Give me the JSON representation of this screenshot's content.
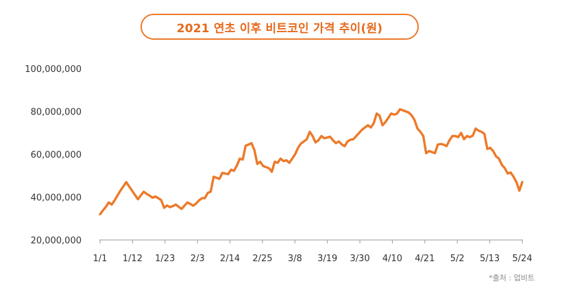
{
  "chart_data": {
    "type": "line",
    "title": "2021 연초 이후 비트코인 가격 추이(원)",
    "source": "*출처 : 업비트",
    "ylim": [
      20000000,
      100000000
    ],
    "y_ticks": [
      {
        "value": 100000000,
        "label": "100,000,000"
      },
      {
        "value": 80000000,
        "label": "80,000,000"
      },
      {
        "value": 60000000,
        "label": "60,000,000"
      },
      {
        "value": 40000000,
        "label": "40,000,000"
      },
      {
        "value": 20000000,
        "label": "20,000,000"
      }
    ],
    "x_ticks": [
      "1/1",
      "1/12",
      "1/23",
      "2/3",
      "2/14",
      "2/25",
      "3/8",
      "3/19",
      "3/30",
      "4/10",
      "4/21",
      "5/2",
      "5/13",
      "5/24"
    ],
    "grid": false,
    "line_color": "#ec7a2a",
    "series": [
      {
        "values": [
          32000000,
          33800000,
          35500000,
          37500000,
          36500000,
          38500000,
          40800000,
          43000000,
          45000000,
          47000000,
          45000000,
          43000000,
          41000000,
          39000000,
          40800000,
          42500000,
          41500000,
          40700000,
          39700000,
          40300000,
          39500000,
          38600000,
          35000000,
          36100000,
          35300000,
          35800000,
          36500000,
          35500000,
          34500000,
          36000000,
          37500000,
          36800000,
          36000000,
          37000000,
          38500000,
          39500000,
          39500000,
          42000000,
          42500000,
          49500000,
          49000000,
          48500000,
          51300000,
          51000000,
          50700000,
          52800000,
          52300000,
          54800000,
          58000000,
          57500000,
          64000000,
          64500000,
          65200000,
          62000000,
          55500000,
          56500000,
          54500000,
          54000000,
          53500000,
          51800000,
          56500000,
          56000000,
          58000000,
          56800000,
          57200000,
          56000000,
          58000000,
          60000000,
          63000000,
          65000000,
          66000000,
          67000000,
          70500000,
          68500000,
          65500000,
          66500000,
          68500000,
          67500000,
          67800000,
          68200000,
          66500000,
          65200000,
          66000000,
          64600000,
          63800000,
          66000000,
          66800000,
          67000000,
          68500000,
          70000000,
          71500000,
          72500000,
          73500000,
          72500000,
          74500000,
          79000000,
          78000000,
          73500000,
          75000000,
          77000000,
          79000000,
          78500000,
          79000000,
          81000000,
          80500000,
          80000000,
          79500000,
          78200000,
          76000000,
          72000000,
          70500000,
          68500000,
          60500000,
          61500000,
          61000000,
          60500000,
          64500000,
          64800000,
          64500000,
          63800000,
          66500000,
          68500000,
          68500000,
          68000000,
          70000000,
          67000000,
          68500000,
          68000000,
          68700000,
          72000000,
          71000000,
          70500000,
          69500000,
          62500000,
          63000000,
          61500000,
          59000000,
          58000000,
          55000000,
          53500000,
          51000000,
          51500000,
          49500000,
          47000000,
          43000000,
          47000000
        ]
      }
    ]
  }
}
